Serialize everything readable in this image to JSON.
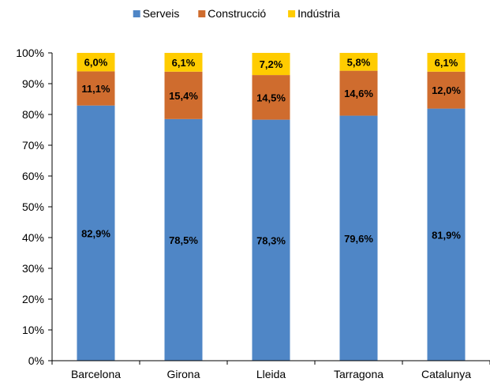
{
  "chart_data": {
    "type": "bar",
    "stacked": true,
    "categories": [
      "Barcelona",
      "Girona",
      "Lleida",
      "Tarragona",
      "Catalunya"
    ],
    "series": [
      {
        "name": "Serveis",
        "color": "#4F86C6",
        "values": [
          82.9,
          78.5,
          78.3,
          79.6,
          81.9
        ],
        "labels": [
          "82,9%",
          "78,5%",
          "78,3%",
          "79,6%",
          "81,9%"
        ]
      },
      {
        "name": "Construcció",
        "color": "#CF6C2E",
        "values": [
          11.1,
          15.4,
          14.5,
          14.6,
          12.0
        ],
        "labels": [
          "11,1%",
          "15,4%",
          "14,5%",
          "14,6%",
          "12,0%"
        ]
      },
      {
        "name": "Indústria",
        "color": "#FFCC00",
        "values": [
          6.0,
          6.1,
          7.2,
          5.8,
          6.1
        ],
        "labels": [
          "6,0%",
          "6,1%",
          "7,2%",
          "5,8%",
          "6,1%"
        ]
      }
    ],
    "ylim": [
      0,
      100
    ],
    "yticks": [
      "0%",
      "10%",
      "20%",
      "30%",
      "40%",
      "50%",
      "60%",
      "70%",
      "80%",
      "90%",
      "100%"
    ],
    "grid": false,
    "legend": "top-center"
  }
}
